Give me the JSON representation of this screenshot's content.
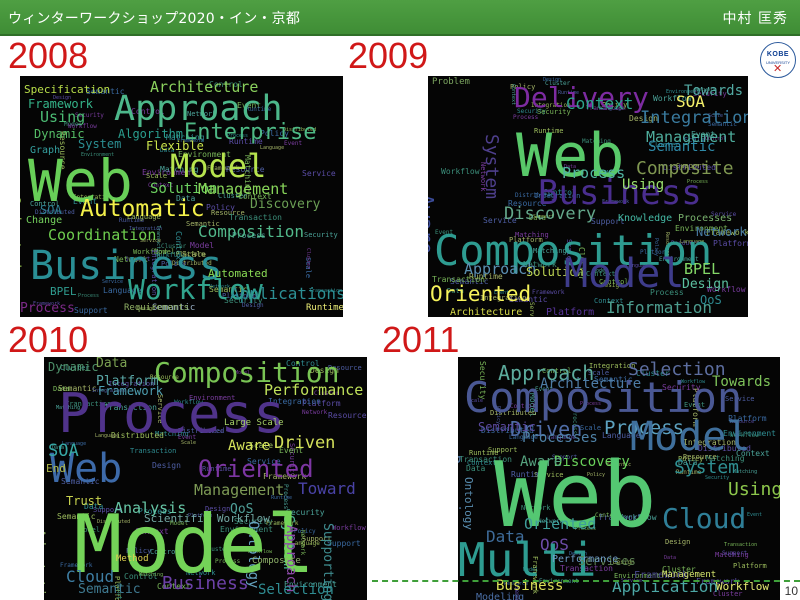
{
  "header": {
    "title": "ウィンターワークショップ2020・イン・京都",
    "author": "中村 匡秀"
  },
  "logo": {
    "line1": "KOBE",
    "line2": "UNIVERSITY"
  },
  "years": [
    "2008",
    "2009",
    "2010",
    "2011"
  ],
  "page": {
    "number": "10"
  },
  "clouds": [
    {
      "words": [
        "Specification",
        "Architecture",
        "Approach",
        "Framework",
        "Using",
        "Enterprise",
        "Dynamic",
        "Algorithm",
        "System",
        "Flexible",
        "Graph",
        "Web",
        "Model",
        "SOA",
        "Solution",
        "Management",
        "Oriented",
        "Change",
        "Automatic",
        "Coordination",
        "Composition",
        "Business",
        "BPEL",
        "Workflow",
        "Automated",
        "Applications",
        "Process",
        "Discovery",
        "Semantic",
        "Requirements",
        "Runtime"
      ]
    },
    {
      "words": [
        "Problem",
        "Delivery",
        "Towards",
        "SOA",
        "Context",
        "Integration",
        "Management",
        "Web",
        "Composite",
        "System",
        "Process",
        "Aware",
        "Business",
        "Discovery",
        "Knowledge",
        "Processes",
        "Network",
        "Composition",
        "Approach",
        "Solution",
        "Model",
        "Oriented",
        "BPEL",
        "Design",
        "Architecture",
        "Platform",
        "Information",
        "QoS",
        "Using",
        "Semantic"
      ]
    },
    {
      "words": [
        "Dynamic",
        "Data",
        "Composition",
        "Platform",
        "Framework",
        "Performance",
        "Process",
        "Web",
        "Oriented",
        "Management",
        "Toward",
        "Large Scale",
        "Aware",
        "Driven",
        "SOA",
        "End",
        "Trust",
        "Analysis",
        "Scientific Workflow",
        "QoS",
        "Ontology",
        "System",
        "Model",
        "Adaptation",
        "Cloud",
        "Semantic",
        "Business",
        "Supporting",
        "Approach",
        "Composite",
        "Selection",
        "Method"
      ]
    },
    {
      "words": [
        "Approach",
        "Selection",
        "Architecture",
        "Towards",
        "Composition",
        "Driven",
        "Process",
        "Model",
        "Processes",
        "Semantic",
        "Discovery",
        "Aware",
        "Dynamic",
        "System",
        "Web",
        "Using",
        "Ontology",
        "Cloud",
        "Oriented",
        "QoS",
        "Data",
        "Multi",
        "Business",
        "Application",
        "Workflow",
        "Framework",
        "Management",
        "Services",
        "Performance",
        "Modeling"
      ]
    }
  ]
}
